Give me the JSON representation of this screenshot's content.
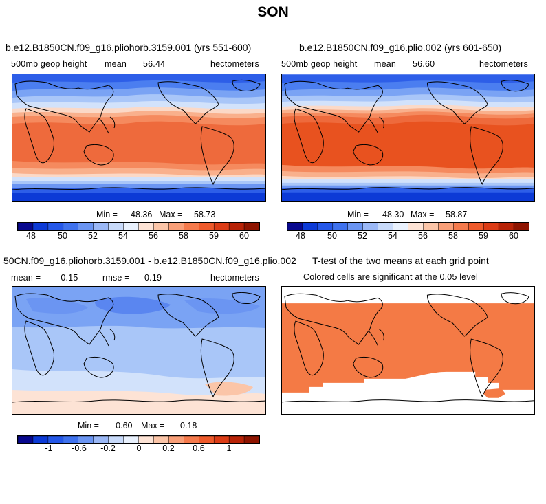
{
  "title": "SON",
  "panels": [
    {
      "title": "b.e12.B1850CN.f09_g16.pliohorb.3159.001 (yrs 551-600)",
      "field": "500mb geop height",
      "mean_label": "mean=",
      "mean_value": "56.44",
      "units": "hectometers",
      "min_label": "Min =",
      "min_value": "48.36",
      "max_label": "Max =",
      "max_value": "58.73"
    },
    {
      "title": "b.e12.B1850CN.f09_g16.plio.002 (yrs 601-650)",
      "field": "500mb geop height",
      "mean_label": "mean=",
      "mean_value": "56.60",
      "units": "hectometers",
      "min_label": "Min =",
      "min_value": "48.30",
      "max_label": "Max =",
      "max_value": "58.87"
    },
    {
      "title": "50CN.f09_g16.pliohorb.3159.001 - b.e12.B1850CN.f09_g16.plio.002",
      "mean_label": "mean =",
      "mean_value": "-0.15",
      "rmse_label": "rmse =",
      "rmse_value": "0.19",
      "units": "hectometers",
      "min_label": "Min =",
      "min_value": "-0.60",
      "max_label": "Max =",
      "max_value": "0.18"
    },
    {
      "title": "T-test of the two means at each grid point",
      "subtitle": "Colored cells are significant at the 0.05 level"
    }
  ],
  "colorbar_abs": {
    "labels": [
      "48",
      "50",
      "52",
      "54",
      "56",
      "58",
      "59",
      "60"
    ],
    "colors": [
      "#08088e",
      "#0c3ad6",
      "#2457e8",
      "#3f72ee",
      "#6b95f2",
      "#9bb8f6",
      "#c8dafa",
      "#e9f1fd",
      "#fde3d5",
      "#fbc5a8",
      "#f99f78",
      "#f57a4c",
      "#ee5a2b",
      "#dc3c16",
      "#b82307",
      "#8e1400"
    ]
  },
  "colorbar_diff": {
    "labels": [
      "-1",
      "-0.6",
      "-0.2",
      "0",
      "0.2",
      "0.6",
      "1"
    ],
    "colors": [
      "#08088e",
      "#0c3ad6",
      "#2457e8",
      "#3f72ee",
      "#6b95f2",
      "#9bb8f6",
      "#c8dafa",
      "#e9f1fd",
      "#fde3d5",
      "#fbc5a8",
      "#f99f78",
      "#f57a4c",
      "#ee5a2b",
      "#dc3c16",
      "#b82307",
      "#8e1400"
    ]
  },
  "colors": {
    "significant": "#f47a45"
  }
}
